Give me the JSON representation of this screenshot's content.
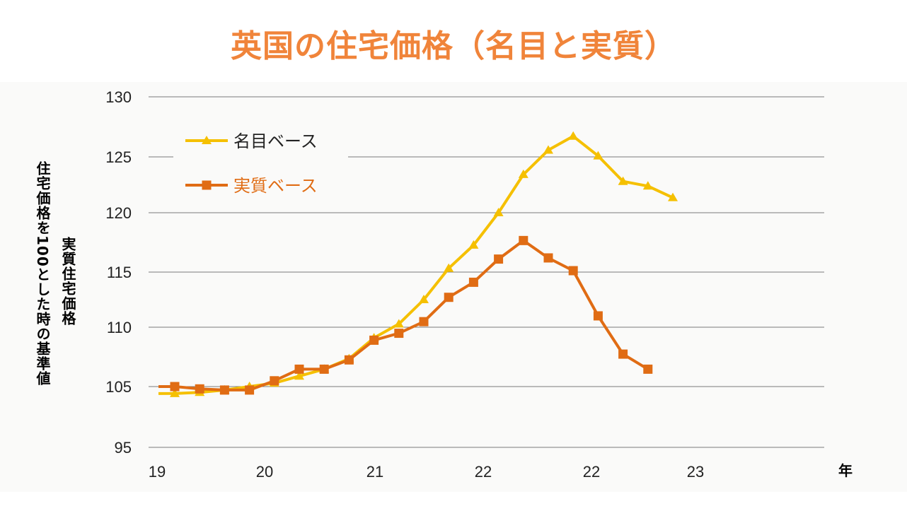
{
  "title": "英国の住宅価格（名目と実質）",
  "y_axis_label_outer": "住宅価格を100とした時の基準値",
  "y_axis_label_inner": "実質住宅価格",
  "x_axis_unit": "年",
  "colors": {
    "title": "#f0843a",
    "nominal": "#f5c000",
    "real": "#e06c14",
    "grid": "#7a7a7a"
  },
  "chart_data": {
    "type": "line",
    "title": "英国の住宅価格（名目と実質）",
    "y_ticks": [
      130,
      125,
      120,
      115,
      110,
      105,
      95
    ],
    "x_tick_labels": [
      "19",
      "20",
      "21",
      "22",
      "22",
      "23"
    ],
    "legend_position": "top-left",
    "series": [
      {
        "name": "名目ベース",
        "marker": "triangle",
        "values": [
          104.4,
          104.5,
          104.7,
          105.0,
          105.3,
          105.9,
          106.5,
          107.4,
          109.2,
          110.4,
          112.5,
          115.2,
          117.2,
          120.0,
          123.3,
          125.4,
          126.6,
          124.9,
          122.7,
          122.3,
          121.3
        ]
      },
      {
        "name": "実質ベース",
        "marker": "square",
        "values": [
          105.0,
          104.8,
          104.7,
          104.7,
          105.5,
          106.5,
          106.5,
          107.3,
          109.0,
          109.6,
          110.6,
          112.7,
          114.0,
          116.0,
          117.6,
          116.1,
          115.0,
          111.1,
          107.8,
          106.5
        ]
      }
    ]
  }
}
